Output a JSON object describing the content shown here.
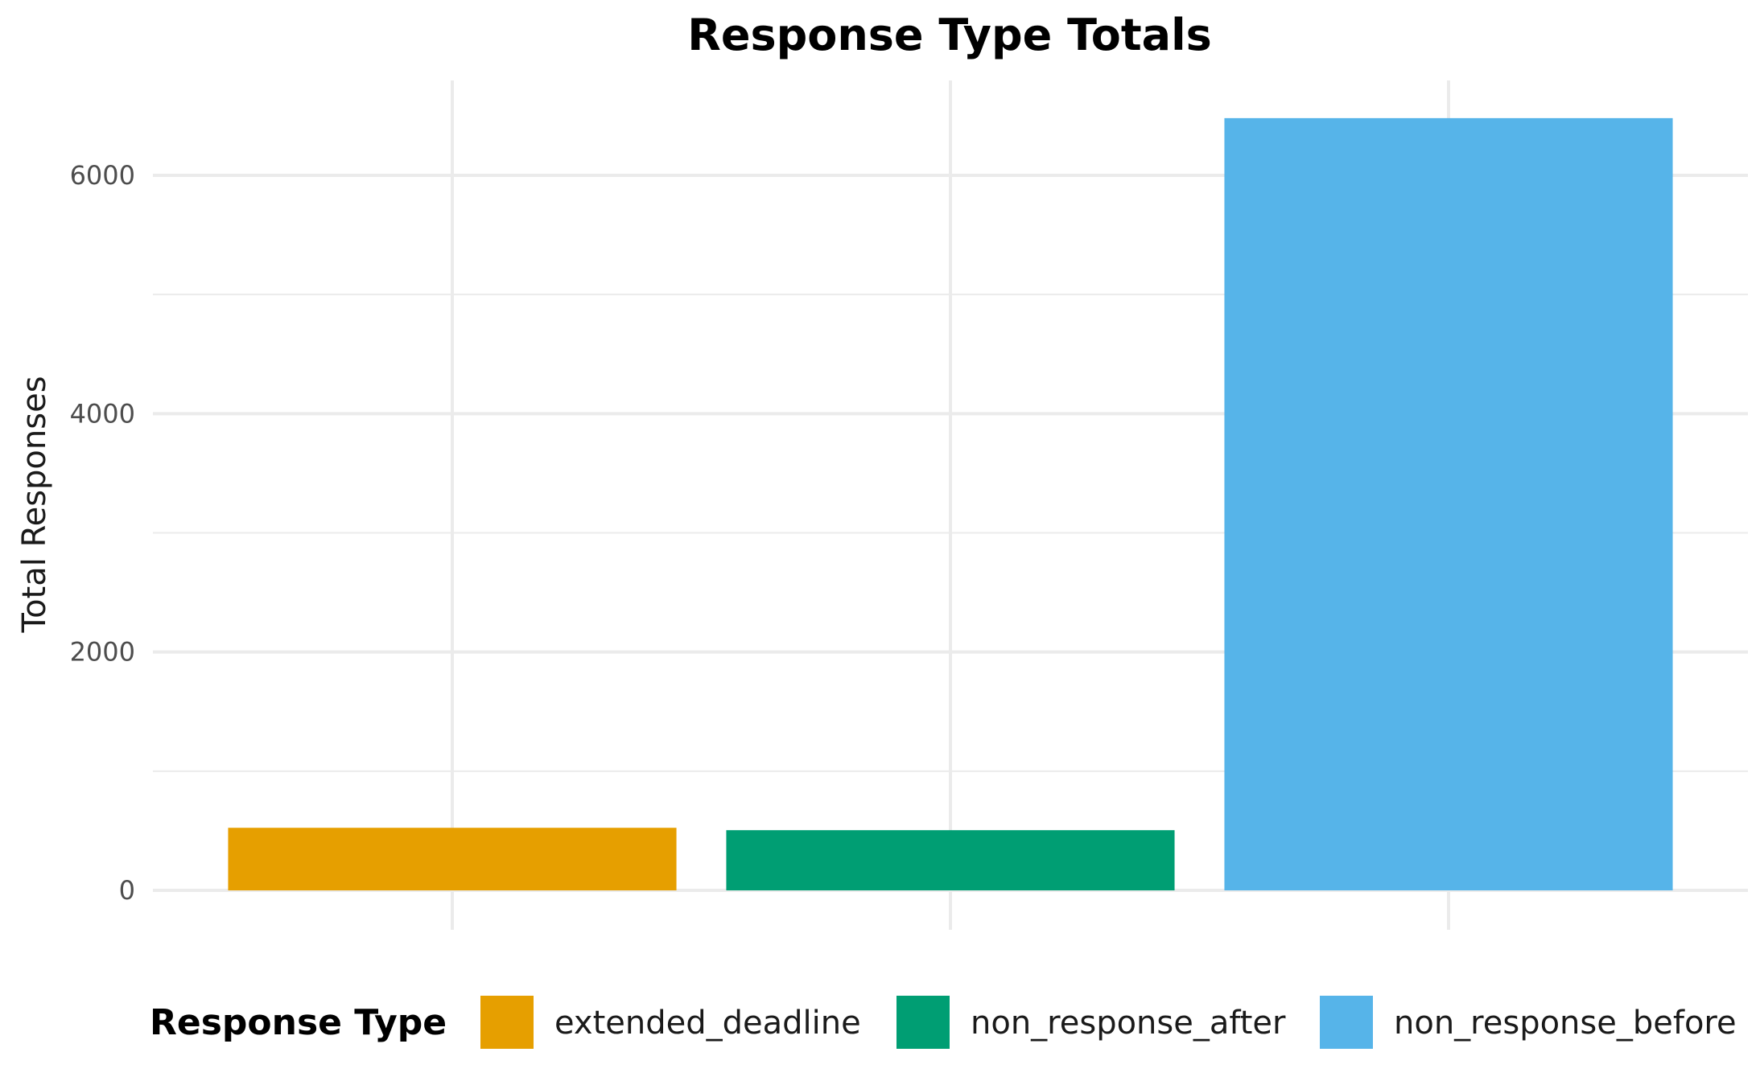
{
  "chart_data": {
    "type": "bar",
    "title": "Response Type Totals",
    "xlabel": "",
    "ylabel": "Total Responses",
    "categories": [
      "extended_deadline",
      "non_response_after",
      "non_response_before"
    ],
    "values": [
      525,
      505,
      6480
    ],
    "colors": [
      "#E69F00",
      "#009E73",
      "#56B4E9"
    ],
    "ylim": [
      0,
      6800
    ],
    "y_ticks": [
      0,
      2000,
      4000,
      6000
    ],
    "y_tick_labels": [
      "0",
      "2000",
      "4000",
      "6000"
    ],
    "grid": true,
    "x_tick_labels_shown": false,
    "legend": {
      "title": "Response Type",
      "position": "bottom",
      "entries": [
        "extended_deadline",
        "non_response_after",
        "non_response_before"
      ]
    }
  }
}
